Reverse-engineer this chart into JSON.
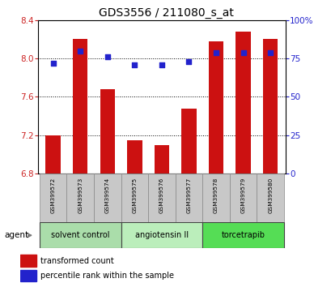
{
  "title": "GDS3556 / 211080_s_at",
  "samples": [
    "GSM399572",
    "GSM399573",
    "GSM399574",
    "GSM399575",
    "GSM399576",
    "GSM399577",
    "GSM399578",
    "GSM399579",
    "GSM399580"
  ],
  "bar_values": [
    7.2,
    8.2,
    7.68,
    7.15,
    7.1,
    7.48,
    8.18,
    8.28,
    8.2
  ],
  "dot_values": [
    72,
    80,
    76,
    71,
    71,
    73,
    79,
    79,
    79
  ],
  "ylim_left": [
    6.8,
    8.4
  ],
  "ylim_right": [
    0,
    100
  ],
  "yticks_left": [
    6.8,
    7.2,
    7.6,
    8.0,
    8.4
  ],
  "yticks_right": [
    0,
    25,
    50,
    75,
    100
  ],
  "bar_color": "#CC1111",
  "dot_color": "#2222CC",
  "groups": [
    {
      "label": "solvent control",
      "indices": [
        0,
        1,
        2
      ],
      "color": "#AADDAA"
    },
    {
      "label": "angiotensin II",
      "indices": [
        3,
        4,
        5
      ],
      "color": "#BBEEBB"
    },
    {
      "label": "torcetrapib",
      "indices": [
        6,
        7,
        8
      ],
      "color": "#55DD55"
    }
  ],
  "baseline": 6.8,
  "xlabel_agent": "agent",
  "legend_bar_label": "transformed count",
  "legend_dot_label": "percentile rank within the sample",
  "label_color_left": "#CC2222",
  "label_color_right": "#2222CC",
  "grid_dotted_at": [
    7.2,
    7.6,
    8.0
  ]
}
